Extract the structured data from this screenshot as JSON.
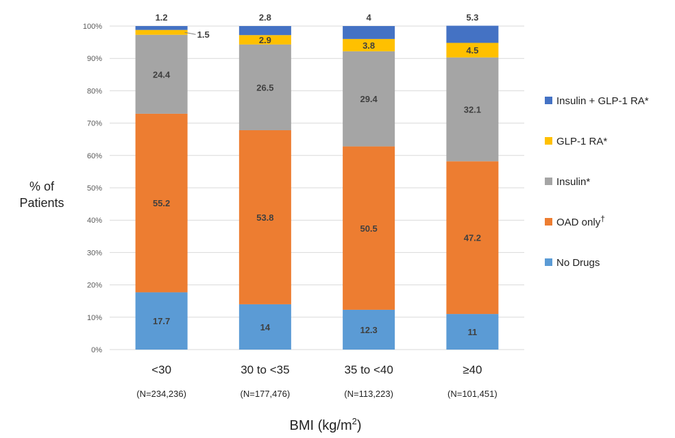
{
  "chart_data": {
    "type": "bar",
    "stacked": true,
    "ylabel_line1": "% of",
    "ylabel_line2": "Patients",
    "xlabel_base": "BMI (kg/m",
    "xlabel_sup": "2",
    "xlabel_end": ")",
    "ylim": [
      0,
      100
    ],
    "yticks": [
      "0%",
      "10%",
      "20%",
      "30%",
      "40%",
      "50%",
      "60%",
      "70%",
      "80%",
      "90%",
      "100%"
    ],
    "grid": true,
    "legend_position": "right",
    "categories": [
      "<30",
      "30 to <35",
      "35 to <40",
      "≥40"
    ],
    "category_n": [
      "(N=234,236)",
      "(N=177,476)",
      "(N=113,223)",
      "(N=101,451)"
    ],
    "series": [
      {
        "name": "No Drugs",
        "legend_sup": "",
        "color": "#5B9BD5",
        "values": [
          17.7,
          14.0,
          12.3,
          11.0
        ]
      },
      {
        "name": "OAD only",
        "legend_sup": "†",
        "color": "#ED7D31",
        "values": [
          55.2,
          53.8,
          50.5,
          47.2
        ]
      },
      {
        "name": "Insulin*",
        "legend_sup": "",
        "color": "#A5A5A5",
        "values": [
          24.4,
          26.5,
          29.4,
          32.1
        ]
      },
      {
        "name": "GLP-1 RA*",
        "legend_sup": "",
        "color": "#FFC000",
        "values": [
          1.5,
          2.9,
          3.8,
          4.5
        ]
      },
      {
        "name": "Insulin + GLP-1 RA*",
        "legend_sup": "",
        "color": "#4472C4",
        "values": [
          1.2,
          2.8,
          4.0,
          5.3
        ]
      }
    ]
  }
}
